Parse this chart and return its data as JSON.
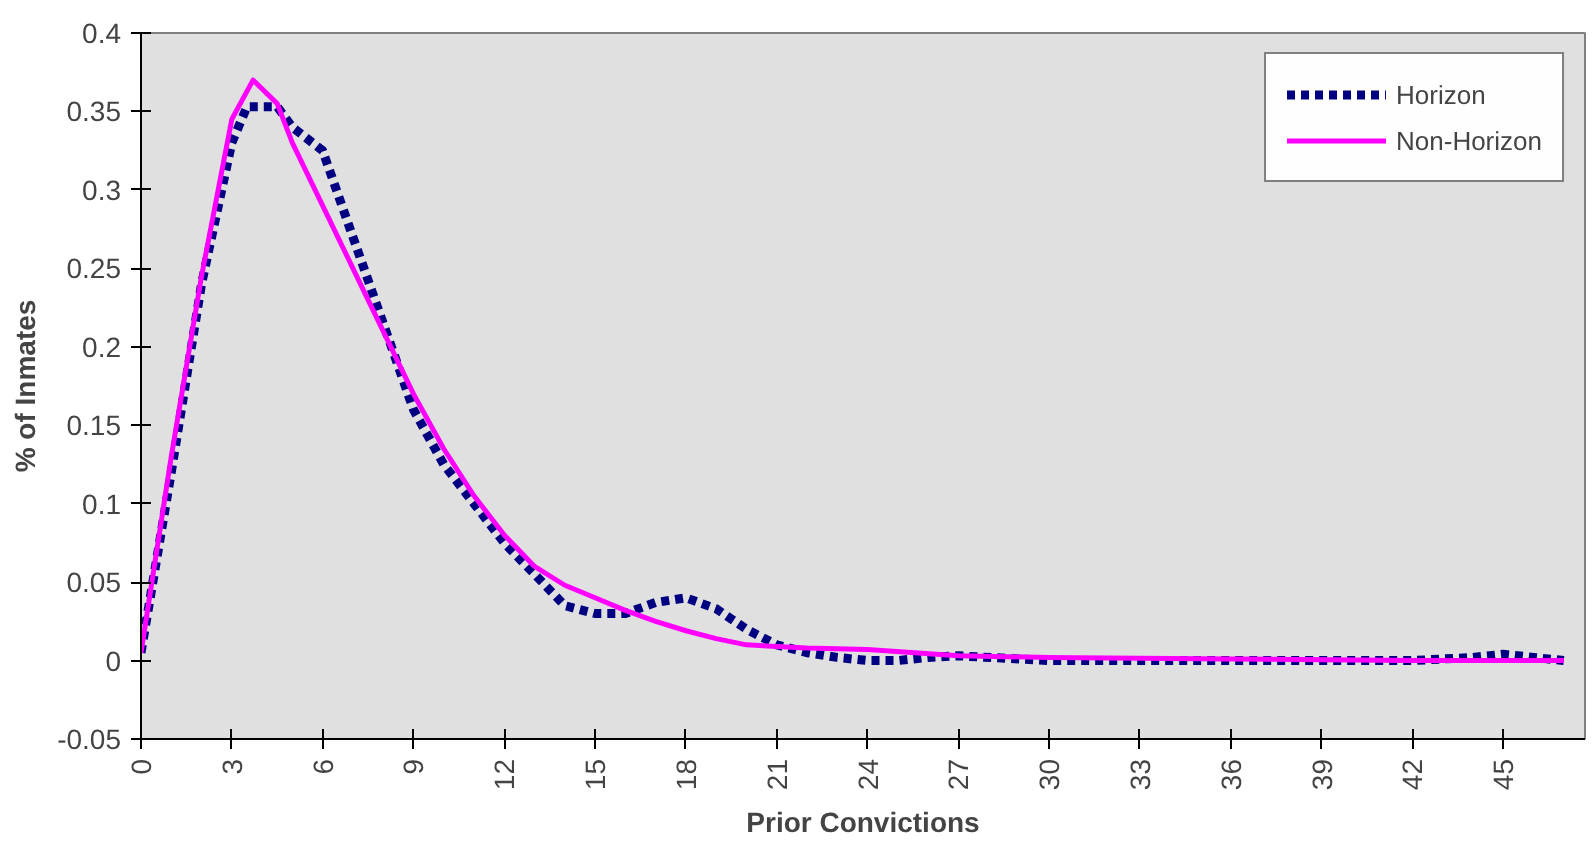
{
  "chart_data": {
    "type": "line",
    "xlabel": "Prior Convictions",
    "ylabel": "% of Inmates",
    "xlim": [
      0,
      47.7
    ],
    "xticks": [
      0,
      3,
      6,
      9,
      12,
      15,
      18,
      21,
      24,
      27,
      30,
      33,
      36,
      39,
      42,
      45
    ],
    "ylim": [
      -0.05,
      0.4
    ],
    "yticks": [
      -0.05,
      0,
      0.05,
      0.1,
      0.15,
      0.2,
      0.25,
      0.3,
      0.35,
      0.4
    ],
    "grid": false,
    "legend": "top right",
    "marker": "none",
    "series": [
      {
        "name": "Horizon",
        "color": "#000080",
        "line_style": "dotted",
        "x": [
          0,
          1,
          2,
          3,
          3.5,
          4.5,
          5,
          6,
          7,
          8,
          9,
          10,
          11,
          12,
          13,
          14,
          15,
          16,
          17,
          18,
          19,
          20,
          21,
          22,
          23,
          24,
          25,
          26,
          27,
          30,
          36,
          42,
          44,
          45,
          46,
          47
        ],
        "values": [
          0.005,
          0.12,
          0.24,
          0.33,
          0.353,
          0.353,
          0.34,
          0.325,
          0.27,
          0.215,
          0.16,
          0.125,
          0.1,
          0.075,
          0.055,
          0.035,
          0.03,
          0.03,
          0.037,
          0.04,
          0.033,
          0.02,
          0.01,
          0.005,
          0.002,
          0,
          0,
          0.002,
          0.003,
          0,
          0,
          0,
          0.002,
          0.004,
          0.002,
          0
        ]
      },
      {
        "name": "Non-Horizon",
        "color": "#ff00ff",
        "line_style": "solid",
        "x": [
          0,
          1,
          2,
          3,
          3.7,
          4.5,
          5,
          6,
          7,
          8,
          9,
          10,
          11,
          12,
          13,
          14,
          15,
          16,
          17,
          18,
          19,
          20,
          21,
          22,
          24,
          27,
          30,
          36,
          42,
          47
        ],
        "values": [
          0.005,
          0.13,
          0.245,
          0.345,
          0.37,
          0.355,
          0.33,
          0.29,
          0.25,
          0.21,
          0.17,
          0.135,
          0.105,
          0.08,
          0.06,
          0.048,
          0.04,
          0.032,
          0.025,
          0.019,
          0.014,
          0.01,
          0.009,
          0.008,
          0.007,
          0.003,
          0.002,
          0.001,
          0,
          0
        ]
      }
    ]
  }
}
